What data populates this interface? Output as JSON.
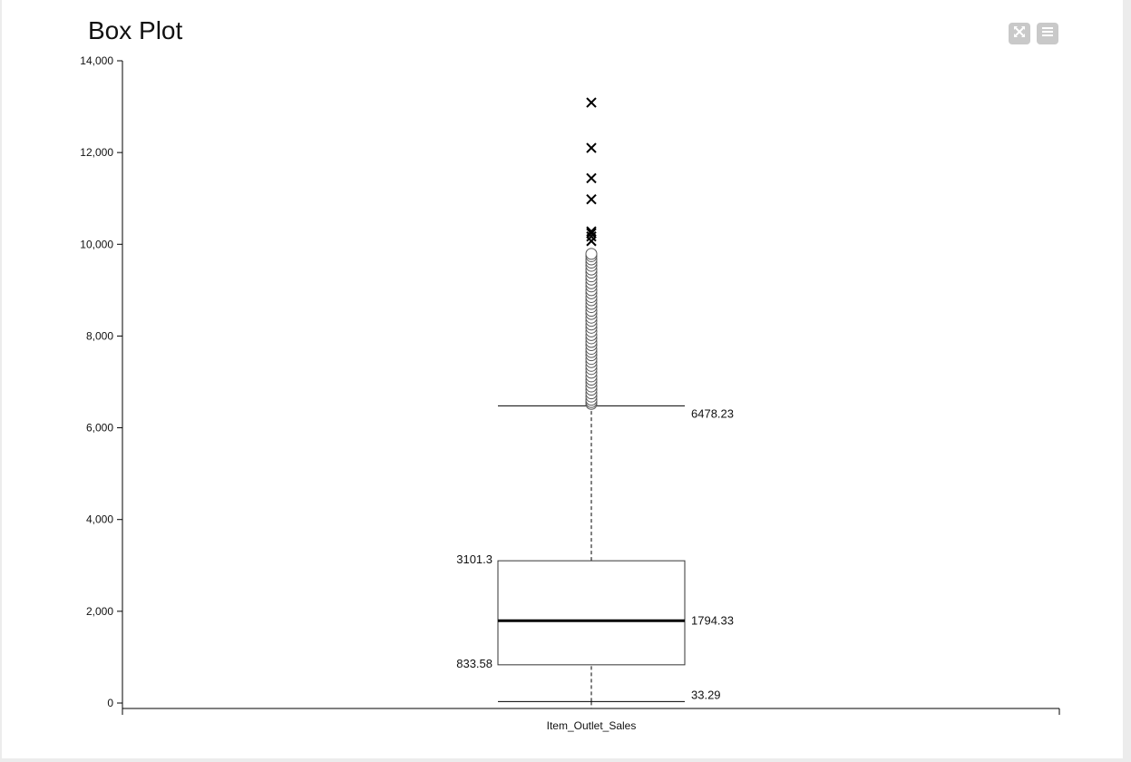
{
  "toolbar": {
    "expand_icon": "expand-icon",
    "menu_icon": "hamburger-menu-icon"
  },
  "chart_data": {
    "type": "box",
    "title": "Box Plot",
    "categories": [
      "Item_Outlet_Sales"
    ],
    "ylim": [
      0,
      14000
    ],
    "yticks": [
      0,
      2000,
      4000,
      6000,
      8000,
      10000,
      12000,
      14000
    ],
    "ytick_labels": [
      "0",
      "2,000",
      "4,000",
      "6,000",
      "8,000",
      "10,000",
      "12,000",
      "14,000"
    ],
    "grid": false,
    "legend": false,
    "box": {
      "lower_whisker": 33.29,
      "q1": 833.58,
      "median": 1794.33,
      "q3": 3101.3,
      "upper_whisker": 6478.23
    },
    "labels": {
      "lower_whisker": "33.29",
      "q1": "833.58",
      "median": "1794.33",
      "q3": "3101.3",
      "upper_whisker": "6478.23"
    },
    "outliers_circle": [
      6520,
      6560,
      6610,
      6680,
      6750,
      6830,
      6900,
      6980,
      7050,
      7120,
      7200,
      7280,
      7350,
      7430,
      7500,
      7580,
      7650,
      7720,
      7800,
      7870,
      7950,
      8020,
      8100,
      8180,
      8250,
      8330,
      8400,
      8480,
      8550,
      8630,
      8700,
      8780,
      8850,
      8930,
      9000,
      9080,
      9150,
      9230,
      9300,
      9380,
      9450,
      9530,
      9600,
      9670,
      9740,
      9790
    ],
    "outliers_extreme": [
      10070,
      10170,
      10240,
      10280,
      10980,
      11440,
      12100,
      13090
    ]
  }
}
